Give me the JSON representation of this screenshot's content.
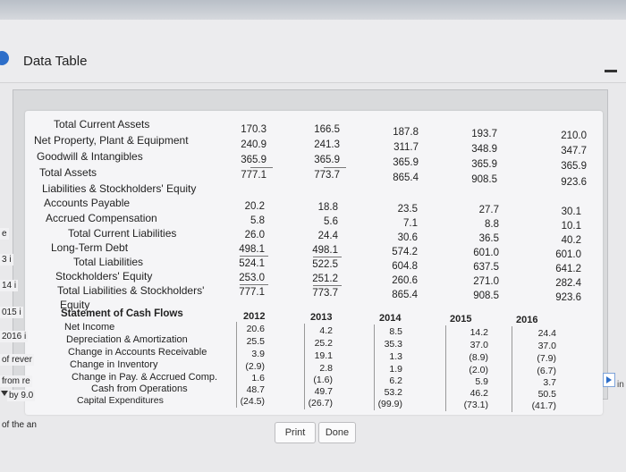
{
  "window": {
    "title": "Data Table"
  },
  "left_clip": [
    "e",
    "3 i",
    "14 i",
    "015 i",
    "2016 i",
    "of rever",
    "from re",
    "by 9.0",
    "of the an"
  ],
  "right_clip": "in",
  "years": [
    "2012",
    "2013",
    "2014",
    "2015",
    "2016"
  ],
  "balance_top": {
    "labels": [
      "Total Current Assets",
      "Net Property, Plant & Equipment",
      "Goodwill & Intangibles",
      "Total Assets",
      "Liabilities & Stockholders' Equity"
    ],
    "values": [
      [
        "170.3",
        "166.5",
        "187.8",
        "193.7",
        "210.0"
      ],
      [
        "240.9",
        "241.3",
        "311.7",
        "348.9",
        "347.7"
      ],
      [
        "365.9",
        "365.9",
        "365.9",
        "365.9",
        "365.9"
      ],
      [
        "777.1",
        "773.7",
        "865.4",
        "908.5",
        "923.6"
      ]
    ]
  },
  "liabilities": {
    "labels": [
      "Accounts Payable",
      "Accrued Compensation",
      "Total Current Liabilities",
      "Long-Term Debt",
      "Total Liabilities",
      "Stockholders' Equity",
      "Total Liabilities & Stockholders'",
      "Equity"
    ],
    "values": [
      [
        "20.2",
        "18.8",
        "23.5",
        "27.7",
        "30.1"
      ],
      [
        "5.8",
        "5.6",
        "7.1",
        "8.8",
        "10.1"
      ],
      [
        "26.0",
        "24.4",
        "30.6",
        "36.5",
        "40.2"
      ],
      [
        "498.1",
        "498.1",
        "574.2",
        "601.0",
        "601.0"
      ],
      [
        "524.1",
        "522.5",
        "604.8",
        "637.5",
        "641.2"
      ],
      [
        "253.0",
        "251.2",
        "260.6",
        "271.0",
        "282.4"
      ],
      [
        "777.1",
        "773.7",
        "865.4",
        "908.5",
        "923.6"
      ]
    ]
  },
  "cash_flows": {
    "heading": "Statement of Cash Flows",
    "labels": [
      "Net Income",
      "Depreciation & Amortization",
      "Change in Accounts Receivable",
      "Change in Inventory",
      "Change in Pay. & Accrued Comp.",
      "Cash from Operations",
      "Capital Expenditures"
    ],
    "values": [
      [
        "20.6",
        "4.2",
        "8.5",
        "14.2",
        "24.4"
      ],
      [
        "25.5",
        "25.2",
        "35.3",
        "37.0",
        "37.0"
      ],
      [
        "3.9",
        "19.1",
        "1.3",
        "(8.9)",
        "(7.9)"
      ],
      [
        "(2.9)",
        "2.8",
        "1.9",
        "(2.0)",
        "(6.7)"
      ],
      [
        "1.6",
        "(1.6)",
        "6.2",
        "5.9",
        "3.7"
      ],
      [
        "48.7",
        "49.7",
        "53.2",
        "46.2",
        "50.5"
      ],
      [
        "(24.5)",
        "(26.7)",
        "(99.9)",
        "(73.1)",
        "(41.7)"
      ]
    ]
  },
  "buttons": {
    "print": "Print",
    "done": "Done"
  }
}
